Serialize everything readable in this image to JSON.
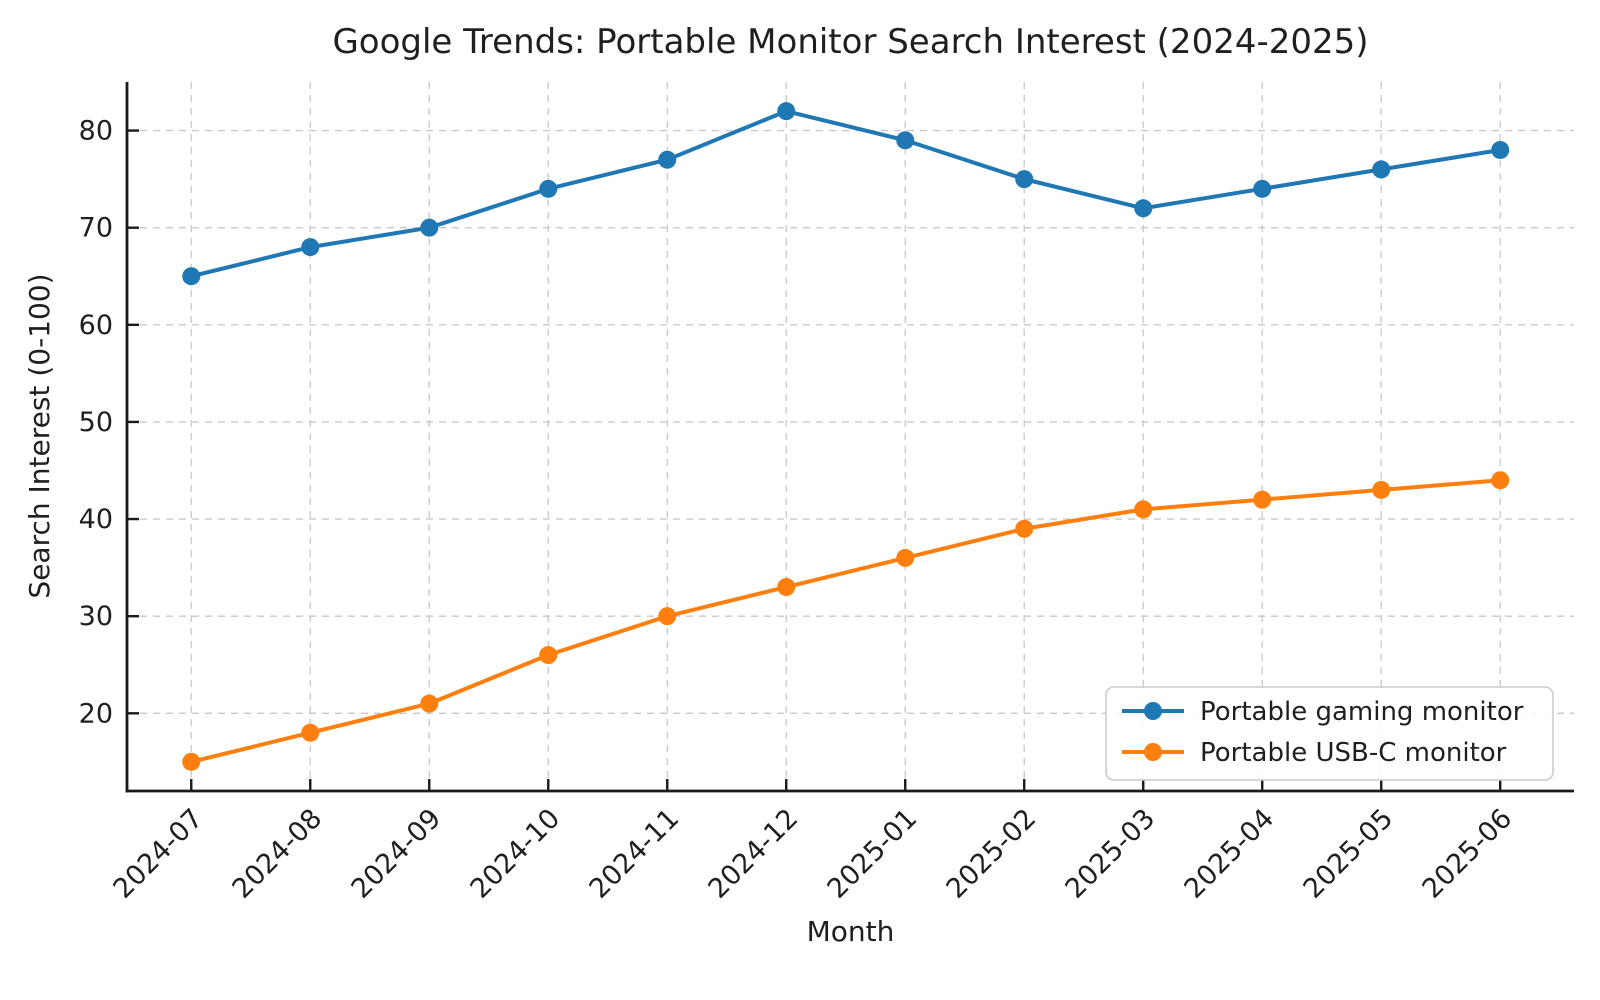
{
  "chart_data": {
    "type": "line",
    "title": "Google Trends: Portable Monitor Search Interest (2024-2025)",
    "xlabel": "Month",
    "ylabel": "Search Interest (0-100)",
    "categories": [
      "2024-07",
      "2024-08",
      "2024-09",
      "2024-10",
      "2024-11",
      "2024-12",
      "2025-01",
      "2025-02",
      "2025-03",
      "2025-04",
      "2025-05",
      "2025-06"
    ],
    "series": [
      {
        "name": "Portable gaming monitor",
        "color": "#1f77b4",
        "values": [
          65,
          68,
          70,
          74,
          77,
          82,
          79,
          75,
          72,
          74,
          76,
          78
        ]
      },
      {
        "name": "Portable USB-C monitor",
        "color": "#ff7f0e",
        "values": [
          15,
          18,
          21,
          26,
          30,
          33,
          36,
          39,
          41,
          42,
          43,
          44
        ]
      }
    ],
    "yticks": [
      20,
      30,
      40,
      50,
      60,
      70,
      80
    ],
    "ylim": [
      12,
      85
    ],
    "xlim": [
      -0.54,
      11.62
    ],
    "grid": "dashed",
    "legend_position": "lower right"
  },
  "style": {
    "text_color": "#1f1f1f",
    "grid_color": "#c9c9c9",
    "spine_color": "#1a1a1a",
    "legend_border": "#cccccc",
    "background": "#ffffff"
  }
}
